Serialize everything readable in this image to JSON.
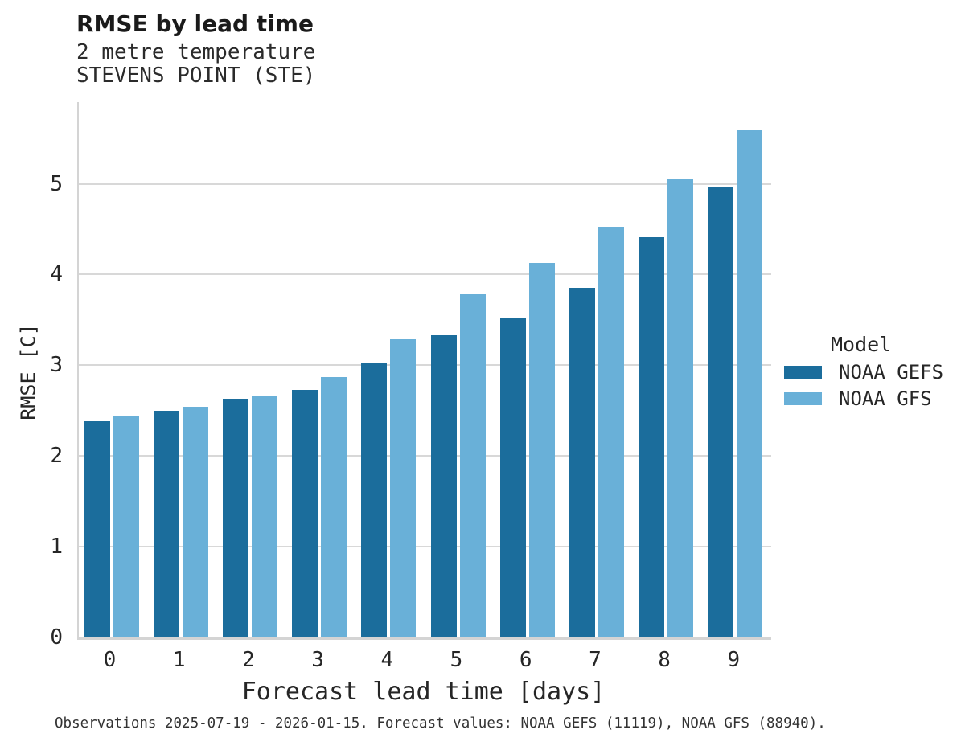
{
  "header": {
    "title": "RMSE by lead time",
    "subtitle_line1": "2 metre temperature",
    "subtitle_line2": "STEVENS POINT (STE)"
  },
  "chart_data": {
    "type": "bar",
    "title": "RMSE by lead time",
    "subtitle": [
      "2 metre temperature",
      "STEVENS POINT (STE)"
    ],
    "xlabel": "Forecast lead time [days]",
    "ylabel": "RMSE [C]",
    "categories": [
      "0",
      "1",
      "2",
      "3",
      "4",
      "5",
      "6",
      "7",
      "8",
      "9"
    ],
    "series": [
      {
        "name": "NOAA GEFS",
        "color": "#1b6d9c",
        "values": [
          2.38,
          2.5,
          2.63,
          2.73,
          3.02,
          3.33,
          3.53,
          3.85,
          4.41,
          4.96
        ]
      },
      {
        "name": "NOAA GFS",
        "color": "#69b0d8",
        "values": [
          2.44,
          2.54,
          2.66,
          2.87,
          3.29,
          3.78,
          4.13,
          4.52,
          5.05,
          5.59
        ]
      }
    ],
    "ylim": [
      0,
      5.9
    ],
    "yticks": [
      "0",
      "1",
      "2",
      "3",
      "4",
      "5"
    ],
    "grid": "horizontal",
    "legend_title": "Model",
    "legend_position": "right"
  },
  "legend": {
    "title": "Model",
    "entries": [
      {
        "label": "NOAA GEFS",
        "swatch": "gefs-swatch",
        "color": "#1b6d9c"
      },
      {
        "label": "NOAA GFS",
        "swatch": "gfs-swatch",
        "color": "#69b0d8"
      }
    ]
  },
  "footer": {
    "caption": "Observations 2025-07-19 - 2026-01-15. Forecast values: NOAA GEFS (11119), NOAA GFS (88940)."
  },
  "colors": {
    "series_dark": "#1b6d9c",
    "series_light": "#69b0d8",
    "gridline": "#d8d8d8",
    "spine": "#d4d4d4",
    "text": "#262626"
  }
}
